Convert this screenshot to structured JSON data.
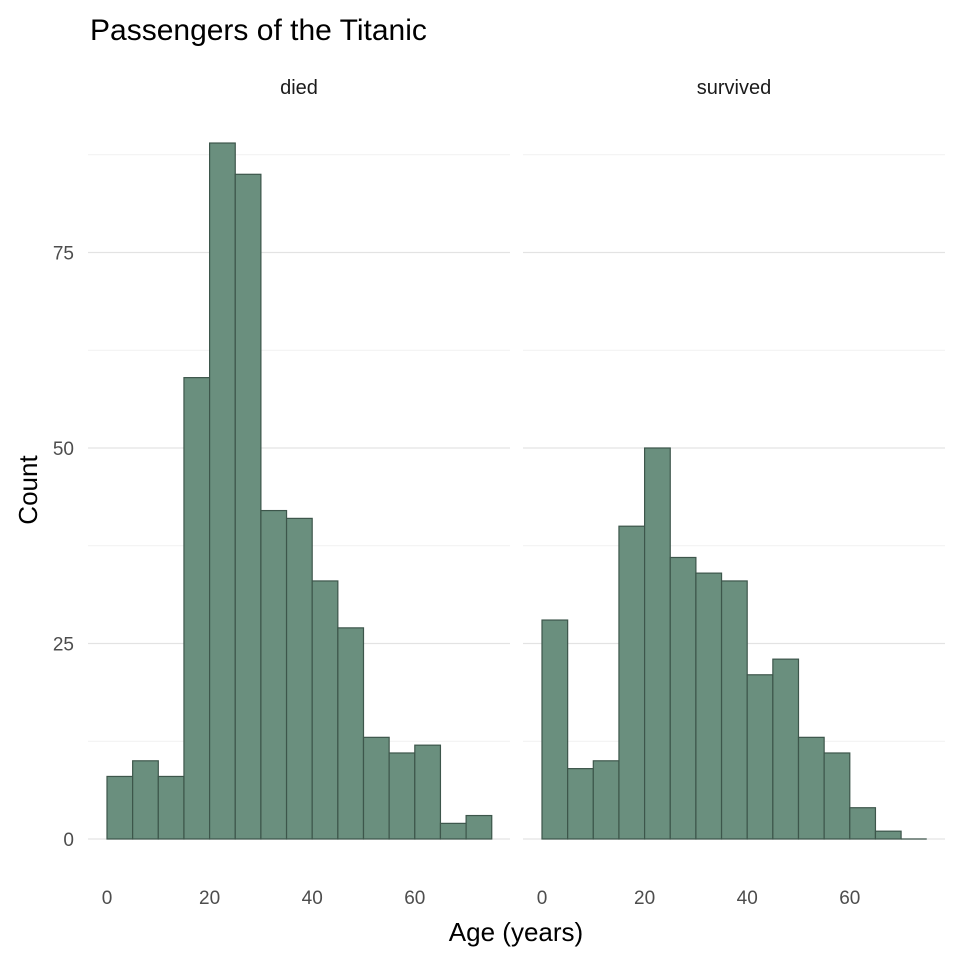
{
  "chart_data": {
    "type": "bar",
    "title": "Passengers of the Titanic",
    "xlabel": "Age (years)",
    "ylabel": "Count",
    "xlim": [
      -5,
      80
    ],
    "ylim": [
      -7.5,
      95
    ],
    "x_ticks": [
      0,
      20,
      40,
      60
    ],
    "y_ticks": [
      0,
      25,
      50,
      75
    ],
    "bin_width": 5,
    "bin_starts": [
      0,
      5,
      10,
      15,
      20,
      25,
      30,
      35,
      40,
      45,
      50,
      55,
      60,
      65,
      70
    ],
    "fill_color": "#6a8f7e",
    "edge_color": "#3d564b",
    "grid": true,
    "legend": "none",
    "panels": [
      {
        "name": "died",
        "values": [
          8,
          10,
          8,
          59,
          89,
          85,
          42,
          41,
          33,
          27,
          13,
          11,
          12,
          2,
          3
        ]
      },
      {
        "name": "survived",
        "values": [
          28,
          9,
          10,
          40,
          50,
          36,
          34,
          33,
          21,
          23,
          13,
          11,
          4,
          1,
          0
        ]
      }
    ]
  }
}
